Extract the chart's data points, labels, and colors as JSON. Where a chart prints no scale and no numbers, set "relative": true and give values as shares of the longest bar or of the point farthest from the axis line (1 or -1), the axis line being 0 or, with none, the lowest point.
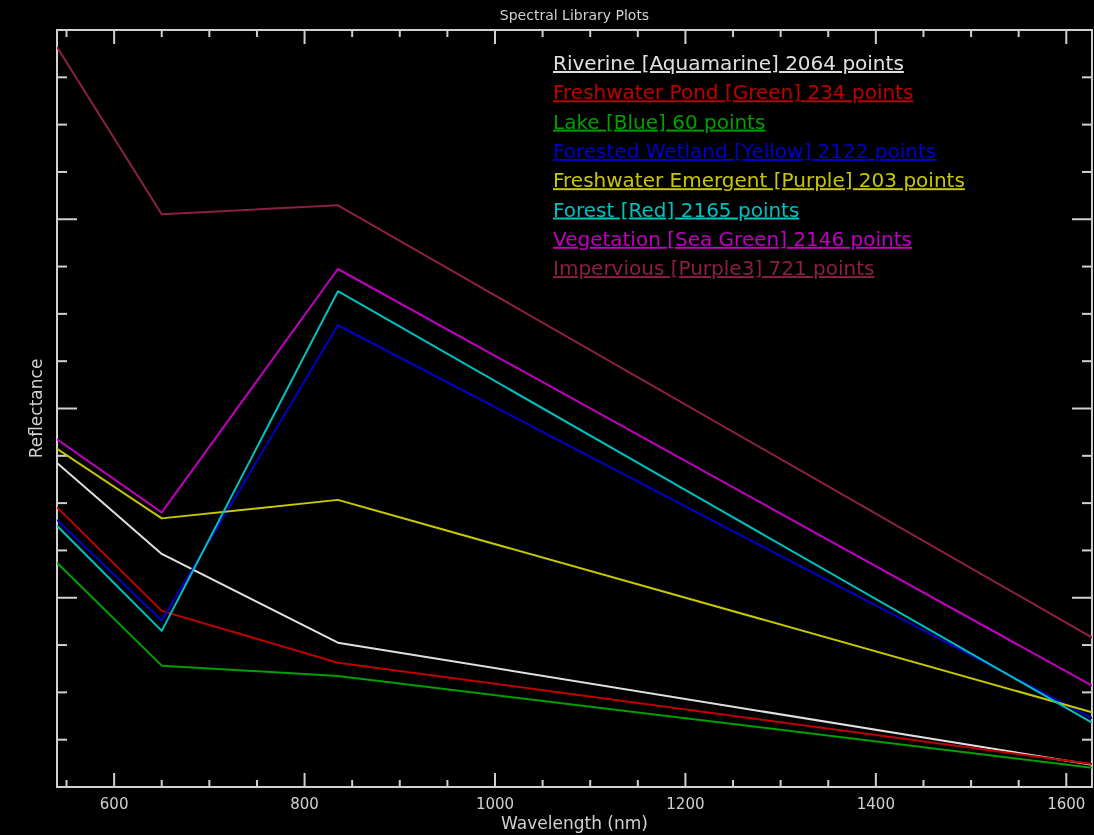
{
  "chart_data": {
    "type": "line",
    "title": "Spectral Library Plots",
    "xlabel": "Wavelength (nm)",
    "ylabel": "Reflectance",
    "relative": true,
    "tick_labels": "x",
    "legend": "top right",
    "marker": "none",
    "line_style": "solid",
    "grid": false,
    "x": [
      540,
      650,
      835,
      1627
    ],
    "xlim": [
      540,
      1627
    ],
    "xticks": [
      {
        "value": 550,
        "label": null
      },
      600,
      {
        "value": 650,
        "label": null
      },
      {
        "value": 700,
        "label": null
      },
      {
        "value": 750,
        "label": null
      },
      800,
      {
        "value": 850,
        "label": null
      },
      {
        "value": 900,
        "label": null
      },
      {
        "value": 950,
        "label": null
      },
      1000,
      {
        "value": 1050,
        "label": null
      },
      {
        "value": 1100,
        "label": null
      },
      {
        "value": 1150,
        "label": null
      },
      1200,
      {
        "value": 1250,
        "label": null
      },
      {
        "value": 1300,
        "label": null
      },
      {
        "value": 1350,
        "label": null
      },
      1400,
      {
        "value": 1450,
        "label": null
      },
      {
        "value": 1500,
        "label": null
      },
      {
        "value": 1550,
        "label": null
      },
      1600
    ],
    "series": [
      {
        "name": "Riverine [Aquamarine] 2064 points",
        "color": "#e0e0e0",
        "values": [
          0.438,
          0.315,
          0.195,
          0.03
        ]
      },
      {
        "name": "Freshwater Pond [Green] 234 points",
        "color": "#c00000",
        "values": [
          0.378,
          0.238,
          0.168,
          0.031
        ]
      },
      {
        "name": "Lake [Blue] 60 points",
        "color": "#00a000",
        "values": [
          0.303,
          0.164,
          0.15,
          0.026
        ]
      },
      {
        "name": "Forested Wetland [Yellow] 2122 points",
        "color": "#0000c8",
        "values": [
          0.361,
          0.225,
          0.624,
          0.093
        ]
      },
      {
        "name": "Freshwater Emergent [Purple] 203 points",
        "color": "#c8c800",
        "values": [
          0.457,
          0.363,
          0.388,
          0.101
        ]
      },
      {
        "name": "Forest [Red] 2165 points",
        "color": "#00c0c0",
        "values": [
          0.353,
          0.211,
          0.67,
          0.087
        ]
      },
      {
        "name": "Vegetation [Sea Green] 2146 points",
        "color": "#c000c0",
        "values": [
          0.47,
          0.371,
          0.7,
          0.137
        ]
      },
      {
        "name": "Impervious [Purple3] 721 points",
        "color": "#8b2040",
        "values": [
          1,
          0.774,
          0.786,
          0.202
        ]
      }
    ]
  }
}
